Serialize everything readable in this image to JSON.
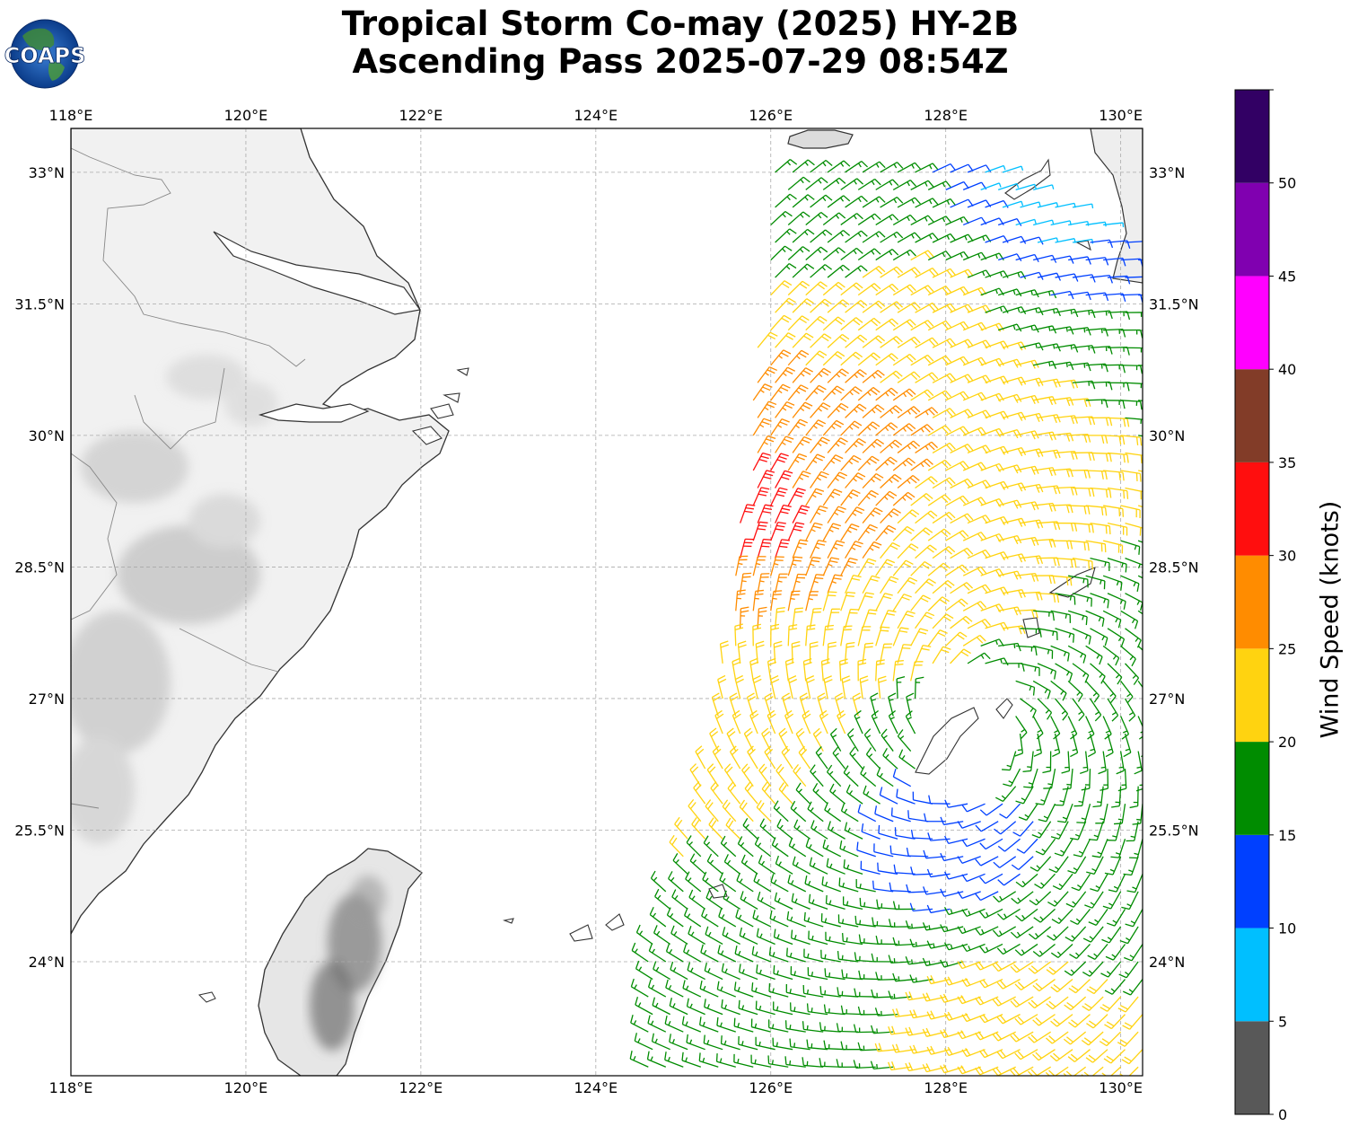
{
  "title": {
    "line1": "Tropical Storm Co-may (2025) HY-2B",
    "line2": "Ascending Pass 2025-07-29 08:54Z"
  },
  "logo": {
    "text": "COAPS"
  },
  "map": {
    "lon_range": [
      118,
      130.25
    ],
    "lat_range": [
      22.7,
      33.5
    ],
    "lon_ticks": [
      "118°E",
      "120°E",
      "122°E",
      "124°E",
      "126°E",
      "128°E",
      "130°E"
    ],
    "lon_tick_values": [
      118,
      120,
      122,
      124,
      126,
      128,
      130
    ],
    "lat_ticks": [
      "33°N",
      "31.5°N",
      "30°N",
      "28.5°N",
      "27°N",
      "25.5°N",
      "24°N"
    ],
    "lat_tick_values": [
      33,
      31.5,
      30,
      28.5,
      27,
      25.5,
      24
    ],
    "grid": true,
    "land_shading": "terrain-grayscale"
  },
  "colorbar": {
    "label": "Wind Speed (knots)",
    "ticks": [
      "0",
      "5",
      "10",
      "15",
      "20",
      "25",
      "30",
      "35",
      "40",
      "45",
      "50"
    ],
    "bins": [
      {
        "min": 0,
        "max": 5,
        "color": "#585858"
      },
      {
        "min": 5,
        "max": 10,
        "color": "#00bfff"
      },
      {
        "min": 10,
        "max": 15,
        "color": "#0040ff"
      },
      {
        "min": 15,
        "max": 20,
        "color": "#008c00"
      },
      {
        "min": 20,
        "max": 25,
        "color": "#ffd310"
      },
      {
        "min": 25,
        "max": 30,
        "color": "#ff8c00"
      },
      {
        "min": 30,
        "max": 35,
        "color": "#ff0e0e"
      },
      {
        "min": 35,
        "max": 40,
        "color": "#823c28"
      },
      {
        "min": 40,
        "max": 45,
        "color": "#ff00ff"
      },
      {
        "min": 45,
        "max": 50,
        "color": "#8000b0"
      },
      {
        "min": 50,
        "max": 55,
        "color": "#320064"
      }
    ],
    "max": 55
  },
  "wind_field": {
    "description_regions": [
      {
        "lat": 32.8,
        "lon": 129.0,
        "speed": 8
      },
      {
        "lat": 32.5,
        "lon": 127.0,
        "speed": 17
      },
      {
        "lat": 31.5,
        "lon": 127.5,
        "speed": 22
      },
      {
        "lat": 30.0,
        "lon": 126.8,
        "speed": 27
      },
      {
        "lat": 29.2,
        "lon": 125.7,
        "speed": 32
      },
      {
        "lat": 28.5,
        "lon": 128.5,
        "speed": 22
      },
      {
        "lat": 27.5,
        "lon": 129.5,
        "speed": 17
      },
      {
        "lat": 26.5,
        "lon": 125.5,
        "speed": 22
      },
      {
        "lat": 25.3,
        "lon": 128.0,
        "speed": 13
      },
      {
        "lat": 24.0,
        "lon": 126.5,
        "speed": 17
      },
      {
        "lat": 23.3,
        "lon": 128.5,
        "speed": 22
      }
    ]
  }
}
